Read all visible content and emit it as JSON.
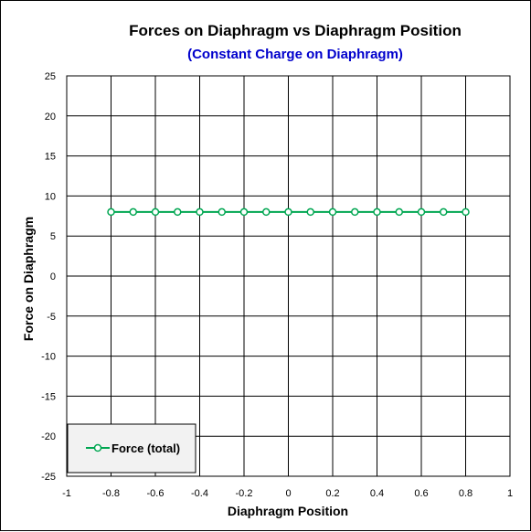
{
  "chart_data": {
    "type": "line",
    "title": "Forces on Diaphragm vs Diaphragm Position",
    "subtitle": "(Constant Charge on Diaphragm)",
    "xlabel": "Diaphragm Position",
    "ylabel": "Force on Diaphragm",
    "xlim": [
      -1,
      1
    ],
    "ylim": [
      -25,
      25
    ],
    "x_ticks": [
      "-1",
      "-0.8",
      "-0.6",
      "-0.4",
      "-0.2",
      "0",
      "0.2",
      "0.4",
      "0.6",
      "0.8",
      "1"
    ],
    "y_ticks": [
      "25",
      "20",
      "15",
      "10",
      "5",
      "0",
      "-5",
      "-10",
      "-15",
      "-20",
      "-25"
    ],
    "grid": "horizontal and vertical major gridlines",
    "legend_position": "bottom-left",
    "series": [
      {
        "name": "Force (total)",
        "color": "#00a651",
        "marker": "open-circle",
        "x": [
          -0.8,
          -0.7,
          -0.6,
          -0.5,
          -0.4,
          -0.3,
          -0.2,
          -0.1,
          0,
          0.1,
          0.2,
          0.3,
          0.4,
          0.5,
          0.6,
          0.7,
          0.8
        ],
        "y": [
          8,
          8,
          8,
          8,
          8,
          8,
          8,
          8,
          8,
          8,
          8,
          8,
          8,
          8,
          8,
          8,
          8
        ]
      }
    ]
  },
  "colors": {
    "subtitle": "#0000cc",
    "grid": "#000000",
    "legend_bg": "#f2f2f2"
  }
}
